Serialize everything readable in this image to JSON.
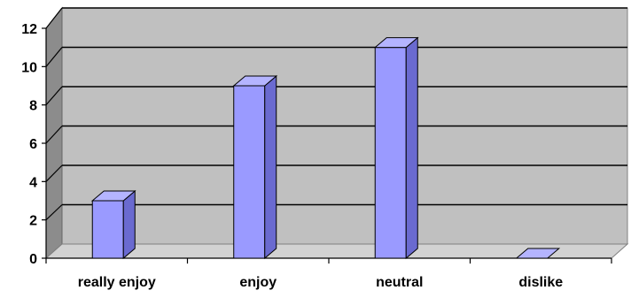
{
  "chart_data": {
    "type": "bar",
    "categories": [
      "really enjoy",
      "enjoy",
      "neutral",
      "dislike"
    ],
    "values": [
      3,
      9,
      11,
      0
    ],
    "yticks": [
      "0",
      "2",
      "4",
      "6",
      "8",
      "10",
      "12"
    ],
    "ylim": [
      0,
      12
    ],
    "grid": true,
    "legend": "none",
    "title": "",
    "xlabel": "",
    "ylabel": "",
    "colors": {
      "bar_front": "#9a9aff",
      "bar_side": "#6a6ad0",
      "bar_top": "#b4b4ff",
      "bar_stroke": "#000000",
      "plot_back": "#c0c0c0",
      "plot_floor": "#d2d2d2",
      "left_wall": "#8c8c8c",
      "gridline": "#000000"
    }
  }
}
